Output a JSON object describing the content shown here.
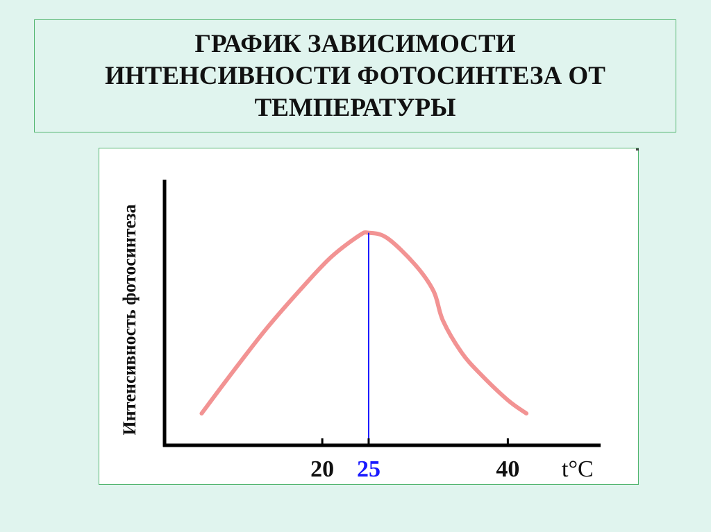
{
  "slide": {
    "title": "ГРАФИК ЗАВИСИМОСТИ ИНТЕНСИВНОСТИ ФОТОСИНТЕЗА ОТ ТЕМПЕРАТУРЫ"
  },
  "colors": {
    "background": "#e0f4ee",
    "frame_border": "#52b56f",
    "curve": "#f08080",
    "optimum_line": "#1a1aff",
    "axes": "#000000"
  },
  "chart_data": {
    "type": "line",
    "title": "",
    "xlabel": "t°C",
    "ylabel": "Интенсивность фотосинтеза",
    "xlim": [
      3,
      50
    ],
    "ylim": [
      0,
      1
    ],
    "x_ticks": [
      {
        "value": 20,
        "label": "20",
        "color": "#111111"
      },
      {
        "value": 25,
        "label": "25",
        "color": "#1a1aff"
      },
      {
        "value": 40,
        "label": "40",
        "color": "#111111"
      }
    ],
    "series": [
      {
        "x": [
          7,
          10,
          14,
          18,
          21,
          24,
          25,
          27,
          30,
          32,
          33,
          35,
          37,
          40,
          42
        ],
        "y": [
          0.12,
          0.26,
          0.44,
          0.6,
          0.71,
          0.79,
          0.8,
          0.78,
          0.68,
          0.58,
          0.47,
          0.35,
          0.27,
          0.17,
          0.12
        ]
      }
    ],
    "vlines": [
      {
        "x": 25,
        "y": 0.8,
        "color": "#1a1aff"
      }
    ],
    "grid": false,
    "legend": "none"
  }
}
